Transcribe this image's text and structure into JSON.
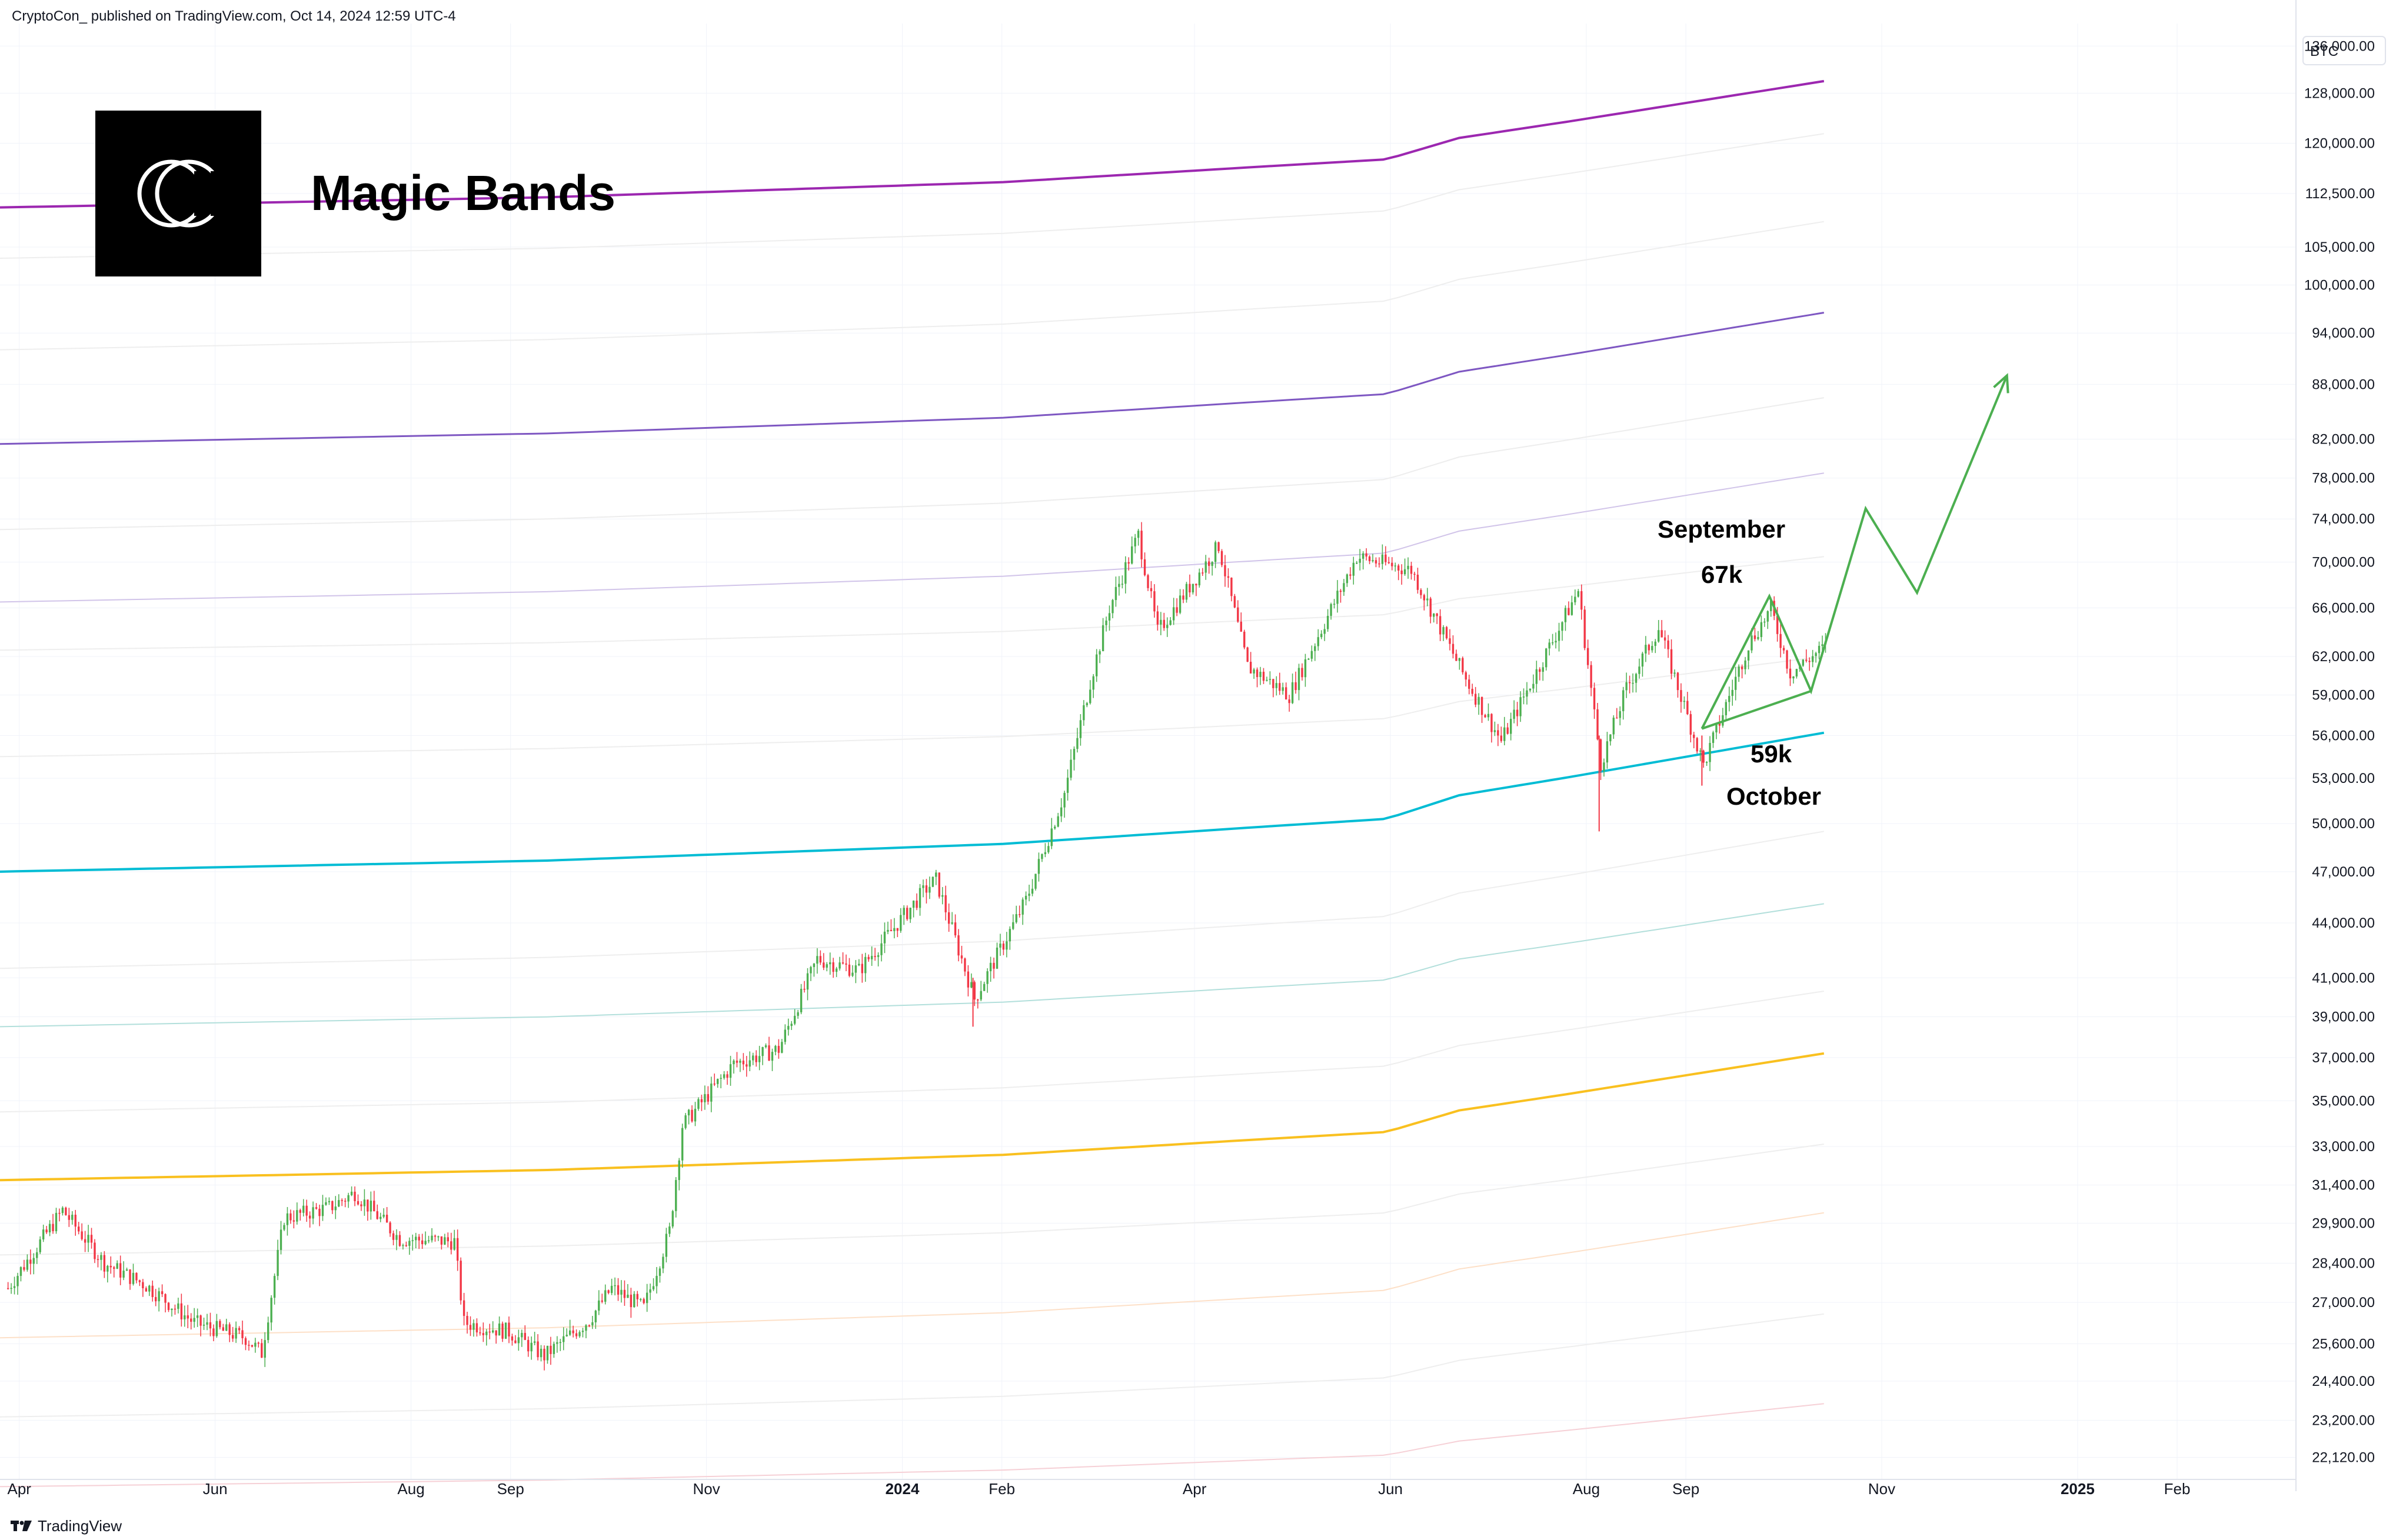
{
  "header": {
    "publisher_line": "CryptoCon_ published on TradingView.com, Oct 14, 2024 12:59 UTC-4"
  },
  "footer": {
    "brand": "TradingView",
    "brand_icon": "tradingview-logo-icon"
  },
  "logo": {
    "icon": "cryptocon-logo-icon",
    "title": "Magic Bands"
  },
  "annotations": {
    "september": "September",
    "sep_price": "67k",
    "oct_price": "59k",
    "october": "October"
  },
  "chart_data": {
    "type": "candlestick",
    "symbol_label": "BTC",
    "scale": "log",
    "ylim": [
      21500,
      140000
    ],
    "xlim": [
      "2023-03-26",
      "2025-03-10"
    ],
    "y_ticks": [
      "136,000.00",
      "128,000.00",
      "120,000.00",
      "112,500.00",
      "105,000.00",
      "100,000.00",
      "94,000.00",
      "88,000.00",
      "82,000.00",
      "78,000.00",
      "74,000.00",
      "70,000.00",
      "66,000.00",
      "62,000.00",
      "59,000.00",
      "56,000.00",
      "53,000.00",
      "50,000.00",
      "47,000.00",
      "44,000.00",
      "41,000.00",
      "39,000.00",
      "37,000.00",
      "35,000.00",
      "33,000.00",
      "31,400.00",
      "29,900.00",
      "28,400.00",
      "27,000.00",
      "25,600.00",
      "24,400.00",
      "23,200.00",
      "22,120.00"
    ],
    "x_ticks": [
      {
        "date": "2023-04-01",
        "label": "Apr"
      },
      {
        "date": "2023-06-01",
        "label": "Jun"
      },
      {
        "date": "2023-08-01",
        "label": "Aug"
      },
      {
        "date": "2023-09-01",
        "label": "Sep"
      },
      {
        "date": "2023-11-01",
        "label": "Nov"
      },
      {
        "date": "2024-01-01",
        "label": "2024",
        "bold": true
      },
      {
        "date": "2024-02-01",
        "label": "Feb"
      },
      {
        "date": "2024-04-01",
        "label": "Apr"
      },
      {
        "date": "2024-06-01",
        "label": "Jun"
      },
      {
        "date": "2024-08-01",
        "label": "Aug"
      },
      {
        "date": "2024-09-01",
        "label": "Sep"
      },
      {
        "date": "2024-11-01",
        "label": "Nov"
      },
      {
        "date": "2025-01-01",
        "label": "2025",
        "bold": true
      },
      {
        "date": "2025-02-01",
        "label": "Feb"
      }
    ],
    "price_path": [
      [
        "2023-03-28",
        27500
      ],
      [
        "2023-04-14",
        30400
      ],
      [
        "2023-04-27",
        28400
      ],
      [
        "2023-05-10",
        27600
      ],
      [
        "2023-05-25",
        26300
      ],
      [
        "2023-06-10",
        25800
      ],
      [
        "2023-06-15",
        25300
      ],
      [
        "2023-06-22",
        30100
      ],
      [
        "2023-07-06",
        30500
      ],
      [
        "2023-07-14",
        31100
      ],
      [
        "2023-07-28",
        29300
      ],
      [
        "2023-08-14",
        29200
      ],
      [
        "2023-08-17",
        26300
      ],
      [
        "2023-08-31",
        26000
      ],
      [
        "2023-09-11",
        25200
      ],
      [
        "2023-09-25",
        26400
      ],
      [
        "2023-10-02",
        27500
      ],
      [
        "2023-10-12",
        26800
      ],
      [
        "2023-10-20",
        29600
      ],
      [
        "2023-10-24",
        33900
      ],
      [
        "2023-11-09",
        36700
      ],
      [
        "2023-11-23",
        37400
      ],
      [
        "2023-12-05",
        42000
      ],
      [
        "2023-12-18",
        41400
      ],
      [
        "2024-01-08",
        46000
      ],
      [
        "2024-01-11",
        46500
      ],
      [
        "2024-01-23",
        39900
      ],
      [
        "2024-02-08",
        45300
      ],
      [
        "2024-02-20",
        52000
      ],
      [
        "2024-02-28",
        60000
      ],
      [
        "2024-03-05",
        66000
      ],
      [
        "2024-03-14",
        72500
      ],
      [
        "2024-03-20",
        64000
      ],
      [
        "2024-04-08",
        71500
      ],
      [
        "2024-04-17",
        61200
      ],
      [
        "2024-04-30",
        59000
      ],
      [
        "2024-05-21",
        70500
      ],
      [
        "2024-06-07",
        69300
      ],
      [
        "2024-06-24",
        60200
      ],
      [
        "2024-07-05",
        55600
      ],
      [
        "2024-07-29",
        67500
      ],
      [
        "2024-08-05",
        54000
      ],
      [
        "2024-08-13",
        59500
      ],
      [
        "2024-08-23",
        64300
      ],
      [
        "2024-09-06",
        53900
      ],
      [
        "2024-09-20",
        63000
      ],
      [
        "2024-09-27",
        65900
      ],
      [
        "2024-10-03",
        60700
      ],
      [
        "2024-10-14",
        62800
      ]
    ],
    "bands": [
      {
        "name": "",
        "color": "#9c27b0",
        "width": 4,
        "start": 110500,
        "end": 130000
      },
      {
        "name": "",
        "color": "#eeeeee",
        "width": 2,
        "start": 103500,
        "end": 121500
      },
      {
        "name": "",
        "color": "#eeeeee",
        "width": 2,
        "start": 92000,
        "end": 108500
      },
      {
        "name": "",
        "color": "#7e57c2",
        "width": 3,
        "start": 81500,
        "end": 96500
      },
      {
        "name": "",
        "color": "#ededed",
        "width": 2,
        "start": 73000,
        "end": 86500
      },
      {
        "name": "",
        "color": "#d1c4e9",
        "width": 2,
        "start": 66500,
        "end": 78500
      },
      {
        "name": "",
        "color": "#eeeeee",
        "width": 2,
        "start": 62500,
        "end": 70500
      },
      {
        "name": "",
        "color": "#eeeeee",
        "width": 2,
        "start": 54500,
        "end": 62000
      },
      {
        "name": "",
        "color": "#00bcd4",
        "width": 4,
        "start": 47000,
        "end": 56200
      },
      {
        "name": "",
        "color": "#eeeeee",
        "width": 2,
        "start": 41500,
        "end": 49500
      },
      {
        "name": "",
        "color": "#b2dfdb",
        "width": 2,
        "start": 38500,
        "end": 45100
      },
      {
        "name": "",
        "color": "#eeeeee",
        "width": 2,
        "start": 34500,
        "end": 40300
      },
      {
        "name": "",
        "color": "#f9c01f",
        "width": 4,
        "start": 31600,
        "end": 37200
      },
      {
        "name": "",
        "color": "#eeeeee",
        "width": 2,
        "start": 28700,
        "end": 33100
      },
      {
        "name": "",
        "color": "#fde0c8",
        "width": 2,
        "start": 25800,
        "end": 30300
      },
      {
        "name": "",
        "color": "#eeeeee",
        "width": 2,
        "start": 23300,
        "end": 26600
      },
      {
        "name": "",
        "color": "#f6d0d6",
        "width": 2,
        "start": 21300,
        "end": 23700
      }
    ],
    "projection": [
      [
        "2024-09-06",
        56500
      ],
      [
        "2024-09-27",
        67000
      ],
      [
        "2024-10-10",
        59300
      ],
      [
        "2024-10-27",
        75000
      ],
      [
        "2024-11-12",
        67300
      ],
      [
        "2024-12-10",
        89000
      ]
    ],
    "colors": {
      "up": "#4caf50",
      "down": "#f23645",
      "projection": "#4caf50",
      "grid": "#f0f3fa"
    }
  }
}
